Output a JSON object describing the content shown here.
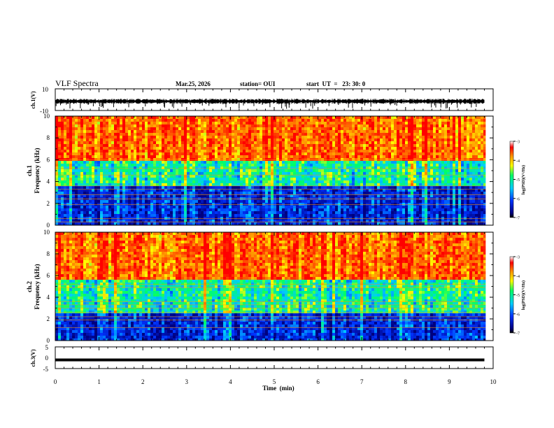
{
  "header": {
    "title": "VLF Spectra",
    "date": "Mar.25, 2026",
    "station": "station= OUI",
    "start": "start  UT  =   23: 30: 0"
  },
  "chart_data": [
    {
      "type": "line",
      "panel": "ch1-waveform",
      "ylabel": "ch.1(V)",
      "ylim": [
        -10,
        10
      ],
      "yticks": [
        "10",
        "-10"
      ],
      "xlim": [
        0,
        10
      ],
      "description_level": -1.5,
      "data_end_min": 9.8
    },
    {
      "type": "heatmap",
      "panel": "ch1-spectrogram",
      "ylabel": "ch.1\nFrequency  (kHz)",
      "ylim": [
        0,
        10
      ],
      "yticks": [
        "0",
        "2",
        "4",
        "6",
        "8",
        "10"
      ],
      "xlim": [
        0,
        10
      ],
      "colorbar": {
        "label": "log(PSD)(V²/Hz)",
        "range": [
          -7,
          -3
        ],
        "ticks": [
          "-3",
          "-4",
          "-5",
          "-6",
          "-7"
        ]
      },
      "bands": [
        {
          "name": "low",
          "from_khz": 0,
          "to_khz": 3.5,
          "level": -6.5
        },
        {
          "name": "mid",
          "from_khz": 3.5,
          "to_khz": 6,
          "level": -5.2
        },
        {
          "name": "high",
          "from_khz": 6,
          "to_khz": 10,
          "level": -3.6
        }
      ],
      "lines_khz": [
        0.3,
        0.6,
        1.9,
        2.4,
        2.8,
        3.3,
        3.6,
        4.6,
        5.2,
        6.0
      ]
    },
    {
      "type": "heatmap",
      "panel": "ch2-spectrogram",
      "ylabel": "ch.2\nFrequency  (kHz)",
      "ylim": [
        0,
        10
      ],
      "yticks": [
        "0",
        "2",
        "4",
        "6",
        "8",
        "10"
      ],
      "xlim": [
        0,
        10
      ],
      "colorbar": {
        "label": "log(PSD)(V²/Hz)",
        "range": [
          -7,
          -3
        ],
        "ticks": [
          "-3",
          "-4",
          "-5",
          "-6",
          "-7"
        ]
      },
      "bands": [
        {
          "name": "low",
          "from_khz": 0,
          "to_khz": 2.6,
          "level": -6.5
        },
        {
          "name": "mid",
          "from_khz": 2.6,
          "to_khz": 5.5,
          "level": -5.2
        },
        {
          "name": "high",
          "from_khz": 5.5,
          "to_khz": 10,
          "level": -3.6
        }
      ],
      "lines_khz": [
        1.2,
        1.9,
        2.2,
        2.6,
        3.0,
        3.3,
        3.6,
        4.9,
        5.2
      ]
    },
    {
      "type": "line",
      "panel": "ch3-waveform",
      "ylabel": "ch.3(V)",
      "ylim": [
        -5,
        5
      ],
      "yticks": [
        "5",
        "0",
        "-5"
      ],
      "xlim": [
        0,
        10
      ],
      "level": -1,
      "data_end_min": 9.8
    }
  ],
  "xaxis": {
    "label": "Time  (min)",
    "ticks": [
      "0",
      "1",
      "2",
      "3",
      "4",
      "5",
      "6",
      "7",
      "8",
      "9",
      "10"
    ]
  },
  "colors": {
    "black": "#000000",
    "red": "#ff0000",
    "orange": "#ff9900",
    "yellow": "#ffff00",
    "green": "#00ff66",
    "cyan": "#00e5ff",
    "blue": "#0033ff",
    "navy": "#000080"
  }
}
